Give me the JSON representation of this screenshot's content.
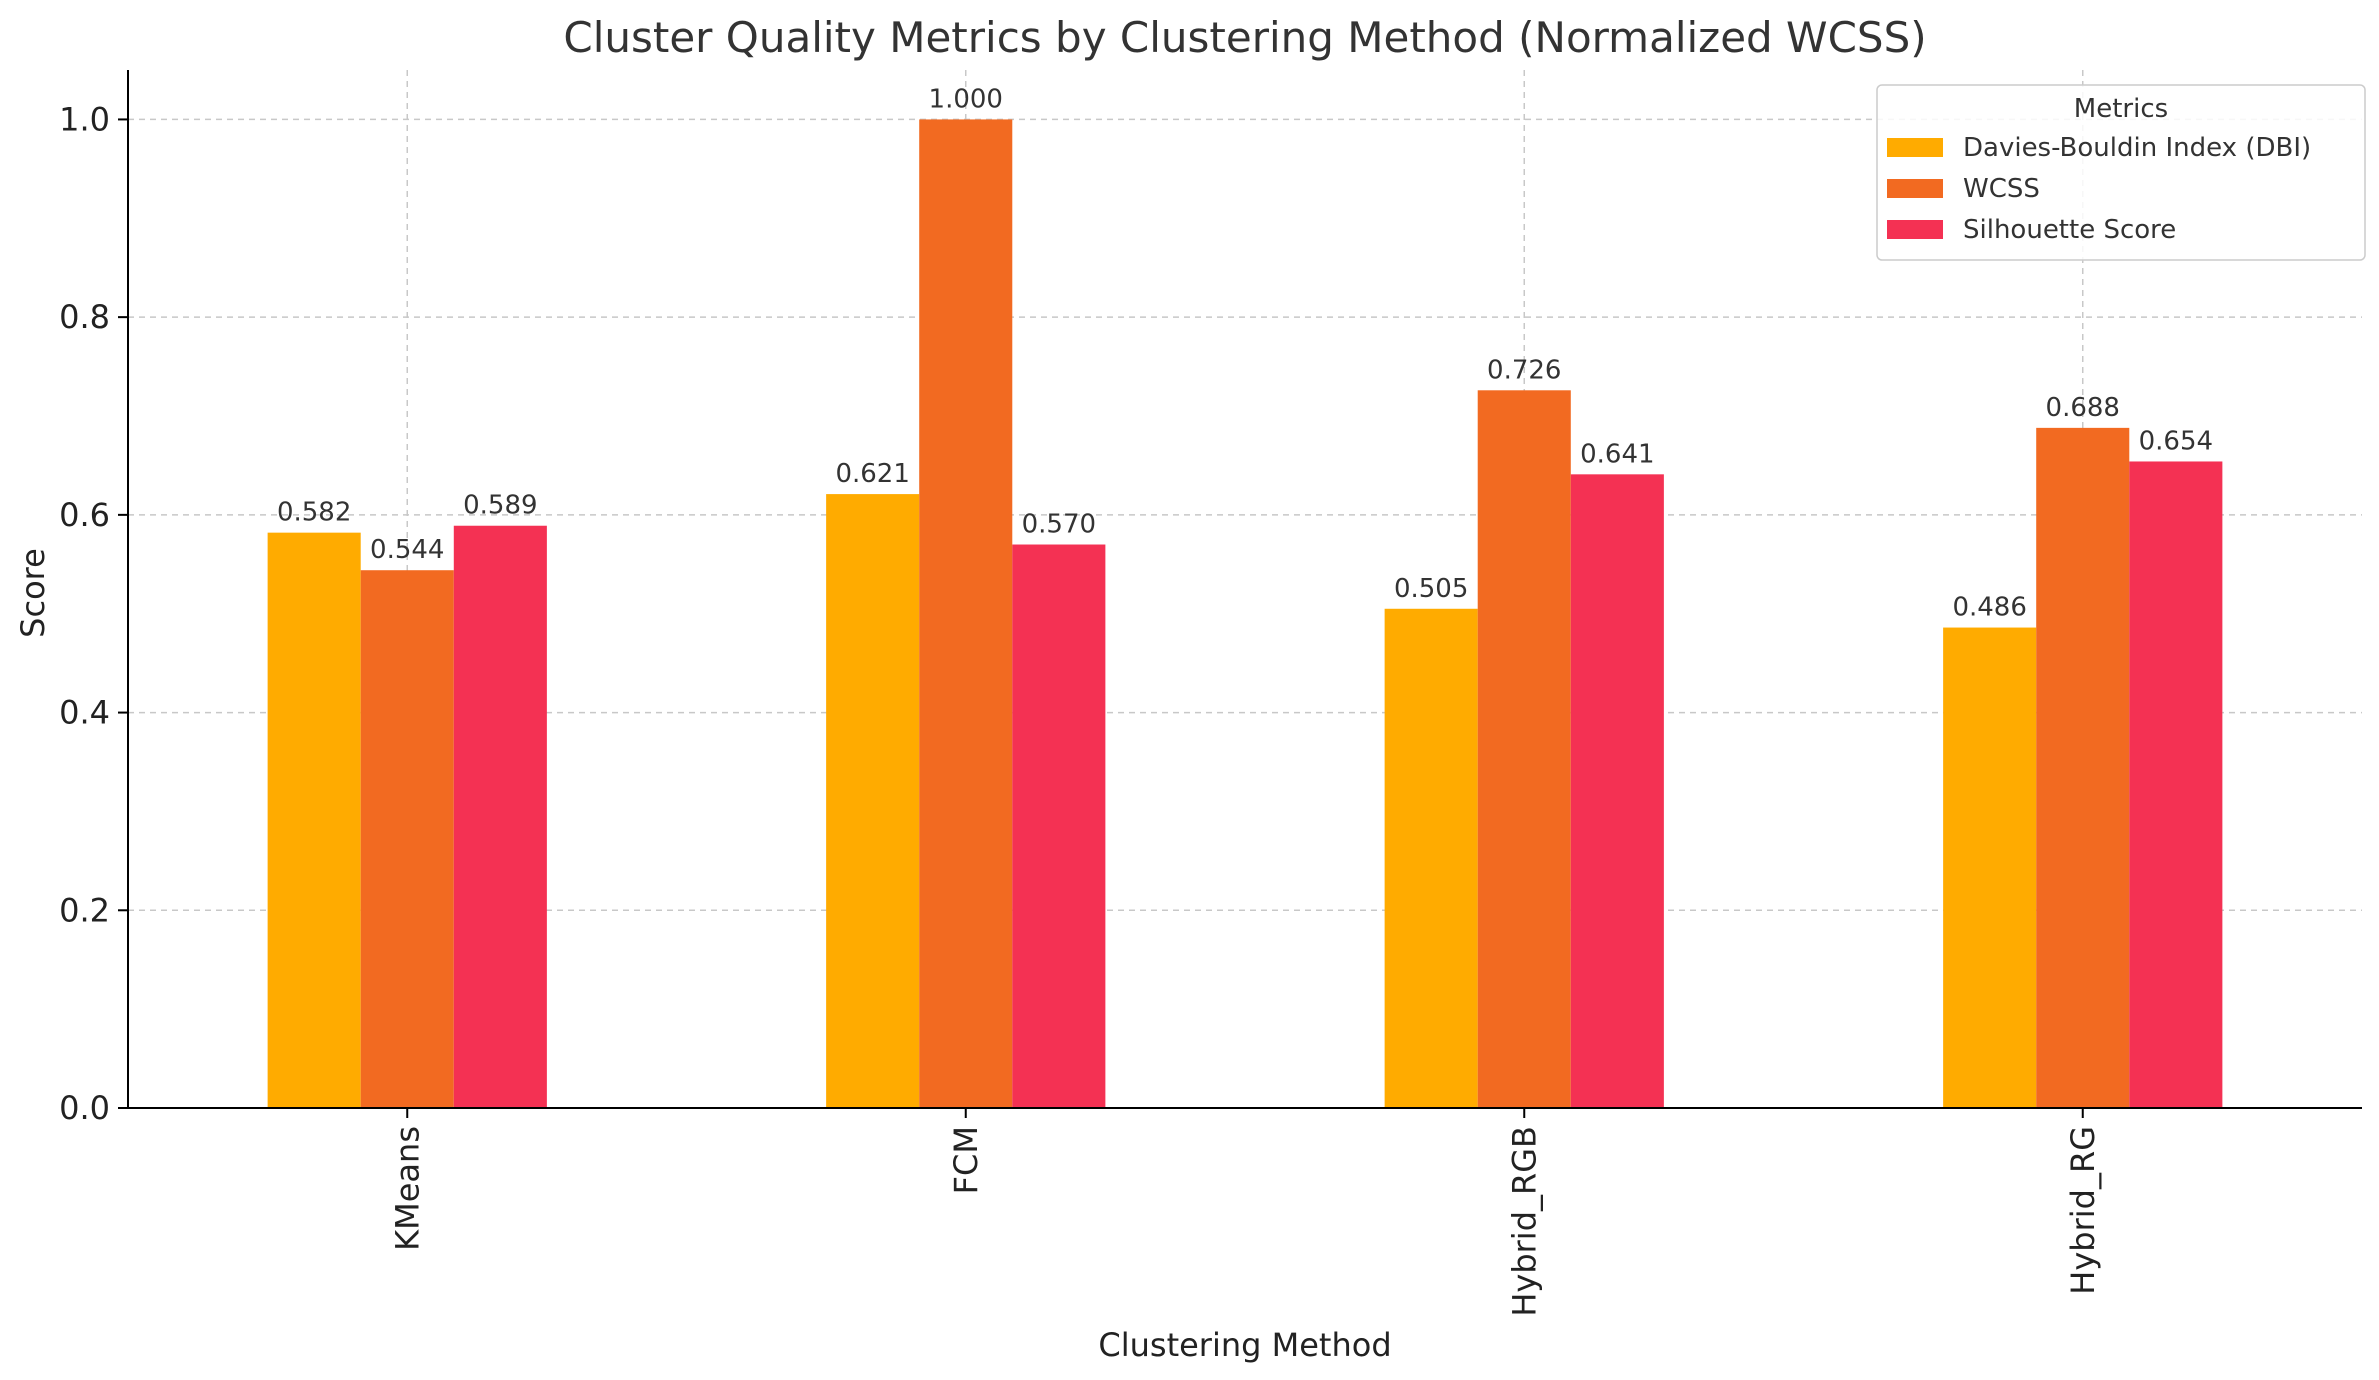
{
  "chart_data": {
    "type": "bar",
    "title": "Cluster Quality Metrics by Clustering Method (Normalized WCSS)",
    "xlabel": "Clustering Method",
    "ylabel": "Score",
    "categories": [
      "KMeans",
      "FCM",
      "Hybrid_RGB",
      "Hybrid_RG"
    ],
    "series": [
      {
        "name": "Davies-Bouldin Index (DBI)",
        "color": "#FFAB00",
        "values": [
          0.582,
          0.621,
          0.505,
          0.486
        ],
        "labels": [
          "0.582",
          "0.621",
          "0.505",
          "0.486"
        ]
      },
      {
        "name": "WCSS",
        "color": "#F26A21",
        "values": [
          0.544,
          1.0,
          0.726,
          0.688
        ],
        "labels": [
          "0.544",
          "1.000",
          "0.726",
          "0.688"
        ]
      },
      {
        "name": "Silhouette Score",
        "color": "#F43153",
        "values": [
          0.589,
          0.57,
          0.641,
          0.654
        ],
        "labels": [
          "0.589",
          "0.570",
          "0.641",
          "0.654"
        ]
      }
    ],
    "ylim": [
      0,
      1.05
    ],
    "yticks": [
      0.0,
      0.2,
      0.4,
      0.6,
      0.8,
      1.0
    ],
    "ytick_labels": [
      "0.0",
      "0.2",
      "0.4",
      "0.6",
      "0.8",
      "1.0"
    ],
    "grid": true,
    "legend": {
      "title": "Metrics",
      "placement": "top-right"
    }
  }
}
